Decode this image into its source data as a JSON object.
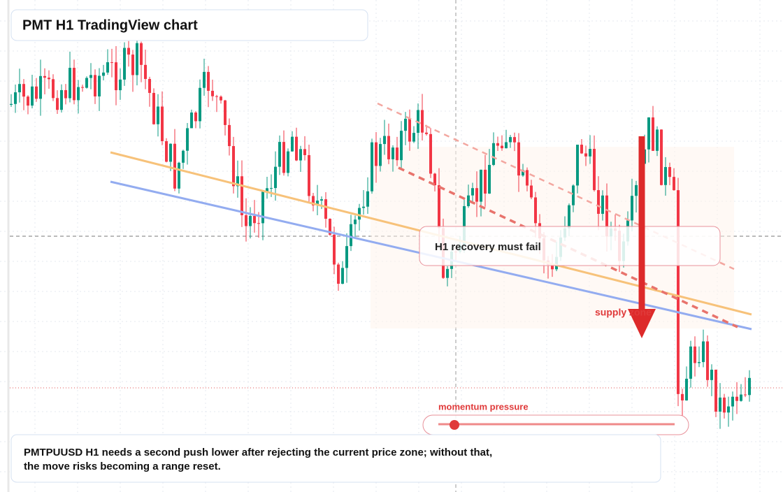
{
  "chart_data": {
    "type": "candlestick",
    "title": "PMT H1 TradingView chart",
    "annotations": [
      "H1 recovery must fail",
      "supply zone",
      "momentum pressure"
    ],
    "caption": [
      "PMTPUUSD H1 needs a second push lower after rejecting the current price zone; without that,",
      "the move risks becoming a range reset."
    ]
  }
}
